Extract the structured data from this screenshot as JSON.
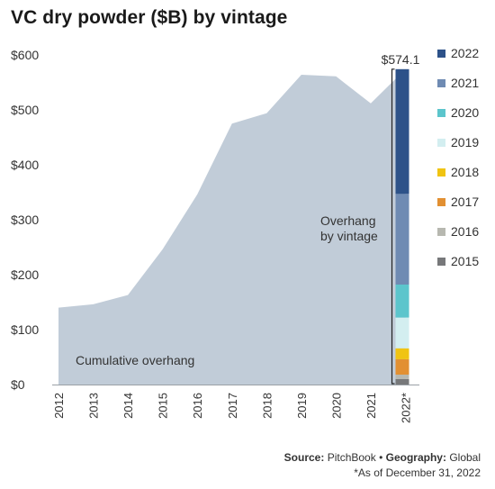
{
  "chart_data": {
    "type": "area",
    "title": "VC dry powder ($B) by vintage",
    "x": [
      "2012",
      "2013",
      "2014",
      "2015",
      "2016",
      "2017",
      "2018",
      "2019",
      "2020",
      "2021",
      "2022*"
    ],
    "series": [
      {
        "name": "Cumulative overhang",
        "values": [
          140,
          146,
          163,
          246,
          346,
          475,
          494,
          564,
          561,
          512,
          574.1
        ]
      }
    ],
    "stacked_bar": {
      "category": "2022*",
      "total_label": "$574.1",
      "total": 574.1,
      "segments": [
        {
          "name": "2015",
          "value": 10
        },
        {
          "name": "2016",
          "value": 8
        },
        {
          "name": "2017",
          "value": 28
        },
        {
          "name": "2018",
          "value": 20
        },
        {
          "name": "2019",
          "value": 56
        },
        {
          "name": "2020",
          "value": 60
        },
        {
          "name": "2021",
          "value": 165
        },
        {
          "name": "2022",
          "value": 227.1
        }
      ]
    },
    "y_ticks": [
      "$0",
      "$100",
      "$200",
      "$300",
      "$400",
      "$500",
      "$600"
    ],
    "ylim": [
      0,
      600
    ],
    "legend": [
      "2022",
      "2021",
      "2020",
      "2019",
      "2018",
      "2017",
      "2016",
      "2015"
    ],
    "legend_position": "right",
    "annotations": {
      "area_label": "Cumulative overhang",
      "bracket_label_line1": "Overhang",
      "bracket_label_line2": "by vintage"
    },
    "colors": {
      "area": "#c1ccd8",
      "2022": "#2d5289",
      "2021": "#6f8bb3",
      "2020": "#5cc5cc",
      "2019": "#d3eef0",
      "2018": "#f0c412",
      "2017": "#e29032",
      "2016": "#b7b8b0",
      "2015": "#77787a"
    },
    "grid": false
  },
  "footer": {
    "source_label": "Source:",
    "source_value": "PitchBook",
    "separator": "•",
    "geo_label": "Geography:",
    "geo_value": "Global",
    "note": "*As of December 31, 2022"
  }
}
